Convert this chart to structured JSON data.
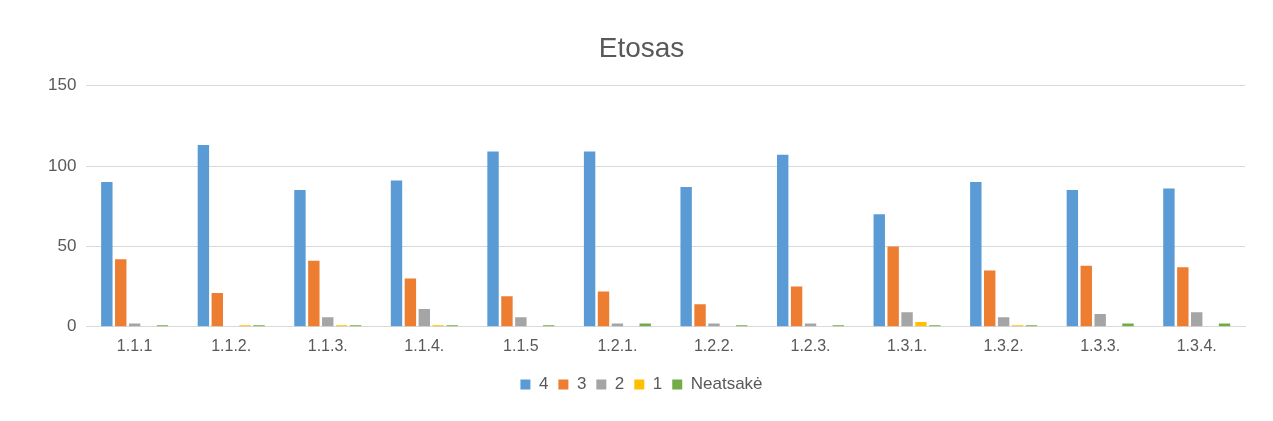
{
  "chart_data": {
    "type": "bar",
    "title": "Etosas",
    "categories": [
      "1.1.1",
      "1.1.2.",
      "1.1.3.",
      "1.1.4.",
      "1.1.5",
      "1.2.1.",
      "1.2.2.",
      "1.2.3.",
      "1.3.1.",
      "1.3.2.",
      "1.3.3.",
      "1.3.4."
    ],
    "series": [
      {
        "name": "4",
        "color": "#5b9bd5",
        "values": [
          90,
          113,
          85,
          91,
          109,
          109,
          87,
          107,
          70,
          90,
          85,
          86
        ]
      },
      {
        "name": "3",
        "color": "#ed7d31",
        "values": [
          42,
          21,
          41,
          30,
          19,
          22,
          14,
          25,
          50,
          35,
          38,
          37
        ]
      },
      {
        "name": "2",
        "color": "#a5a5a5",
        "values": [
          2,
          0,
          6,
          11,
          6,
          2,
          2,
          2,
          9,
          6,
          8,
          9
        ]
      },
      {
        "name": "1",
        "color": "#ffc000",
        "values": [
          0,
          1,
          1,
          1,
          0,
          0,
          0,
          0,
          3,
          1,
          0,
          0
        ]
      },
      {
        "name": "Neatsakė",
        "color": "#70ad47",
        "values": [
          1,
          1,
          1,
          1,
          1,
          2,
          1,
          1,
          1,
          1,
          2,
          2
        ]
      }
    ],
    "ylim": [
      0,
      150
    ],
    "yticks": [
      0,
      50,
      100,
      150
    ],
    "grid": "y",
    "legend": "bottom"
  }
}
